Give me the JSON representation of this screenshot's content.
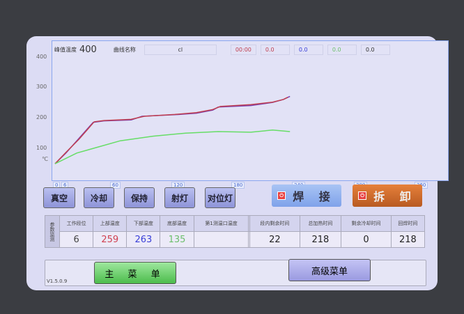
{
  "header": {
    "peak_label": "峰值温度",
    "peak_value": "400",
    "curve_label": "曲线名称",
    "curve_name": "cl",
    "time": "00:00",
    "readouts": [
      "0.0",
      "0.0",
      "0.0",
      "0.0"
    ]
  },
  "chart_data": {
    "type": "line",
    "ylim": [
      0,
      400
    ],
    "xlim": [
      0,
      360
    ],
    "yticks": [
      "400",
      "300",
      "200",
      "100",
      "℃"
    ],
    "xticks": [
      "0",
      "6",
      "60",
      "120",
      "180",
      "240",
      "300",
      "360"
    ],
    "series": [
      {
        "color": "#7a3fb0",
        "points": [
          [
            0,
            45
          ],
          [
            10,
            80
          ],
          [
            20,
            120
          ],
          [
            35,
            180
          ],
          [
            45,
            185
          ],
          [
            70,
            188
          ],
          [
            80,
            200
          ],
          [
            110,
            205
          ],
          [
            130,
            210
          ],
          [
            145,
            220
          ],
          [
            150,
            230
          ],
          [
            180,
            235
          ],
          [
            200,
            245
          ],
          [
            210,
            255
          ],
          [
            216,
            265
          ]
        ]
      },
      {
        "color": "#c04050",
        "points": [
          [
            0,
            45
          ],
          [
            10,
            82
          ],
          [
            22,
            125
          ],
          [
            36,
            182
          ],
          [
            45,
            186
          ],
          [
            70,
            190
          ],
          [
            82,
            200
          ],
          [
            110,
            206
          ],
          [
            130,
            212
          ],
          [
            145,
            222
          ],
          [
            152,
            232
          ],
          [
            180,
            238
          ],
          [
            200,
            246
          ],
          [
            210,
            255
          ],
          [
            214,
            262
          ]
        ]
      },
      {
        "color": "#66dd66",
        "points": [
          [
            0,
            45
          ],
          [
            20,
            80
          ],
          [
            40,
            100
          ],
          [
            60,
            120
          ],
          [
            90,
            135
          ],
          [
            120,
            145
          ],
          [
            150,
            150
          ],
          [
            180,
            148
          ],
          [
            200,
            155
          ],
          [
            216,
            150
          ]
        ]
      }
    ]
  },
  "buttons": {
    "vacuum": "真空",
    "cool": "冷却",
    "hold": "保持",
    "light": "射灯",
    "align": "对位灯",
    "weld": "焊 接",
    "remove": "拆 卸",
    "main_menu": "主 菜 单",
    "adv_menu": "高级菜单"
  },
  "monitor": {
    "side": "参数监测",
    "headers": [
      "工作段位",
      "上部温度",
      "下部温度",
      "底部温度",
      "第1测温口温度",
      "",
      "段内剩余时间",
      "总加热时间",
      "剩余冷却时间",
      "回焊时间"
    ],
    "values": [
      "6",
      "259",
      "263",
      "135",
      "",
      "",
      "22",
      "218",
      "0",
      "218"
    ],
    "colors": [
      "#444",
      "#d04050",
      "#3a40d8",
      "#6cbf6c",
      "#222",
      "#222",
      "#222",
      "#222",
      "#222",
      "#222"
    ]
  },
  "version": "V1.5.0.9"
}
